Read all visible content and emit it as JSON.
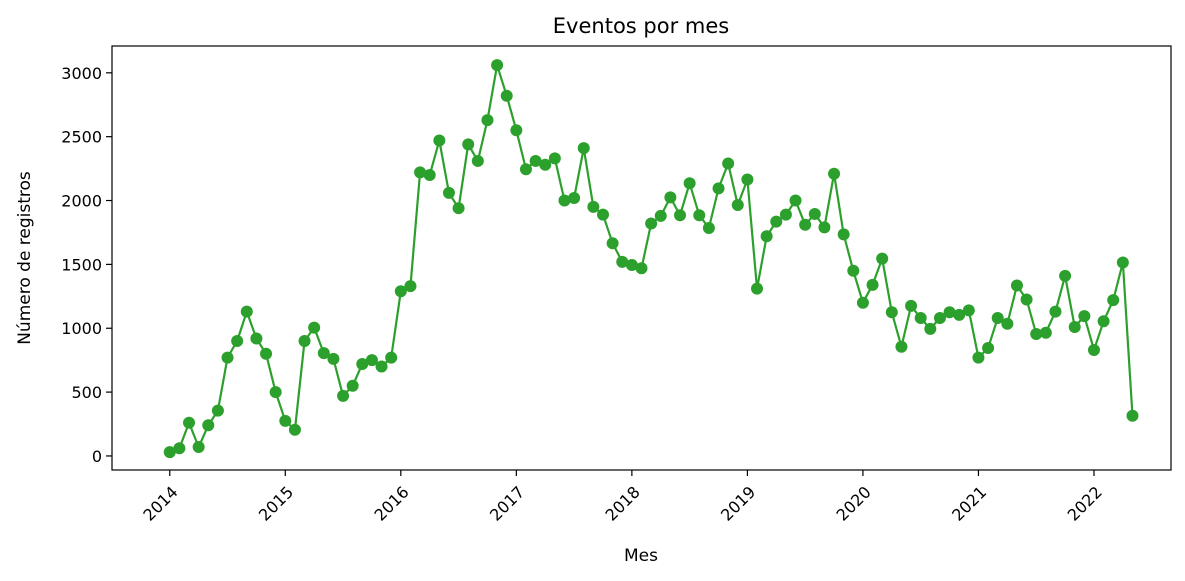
{
  "chart_data": {
    "type": "line",
    "title": "Eventos por mes",
    "xlabel": "Mes",
    "ylabel": "Número de registros",
    "x_tick_labels": [
      "2014",
      "2015",
      "2016",
      "2017",
      "2018",
      "2019",
      "2020",
      "2021",
      "2022"
    ],
    "y_ticks": [
      0,
      500,
      1000,
      1500,
      2000,
      2500,
      3000
    ],
    "y_tick_labels": [
      "0",
      "500",
      "1000",
      "1500",
      "2000",
      "2500",
      "3000"
    ],
    "xlim": [
      "2013-07",
      "2022-09"
    ],
    "ylim": [
      -110,
      3210
    ],
    "grid": false,
    "legend": "none",
    "color": "#2ca02c",
    "series": [
      {
        "x": [
          "2014-01",
          "2014-02",
          "2014-03",
          "2014-04",
          "2014-05",
          "2014-06",
          "2014-07",
          "2014-08",
          "2014-09",
          "2014-10",
          "2014-11",
          "2014-12",
          "2015-01",
          "2015-02",
          "2015-03",
          "2015-04",
          "2015-05",
          "2015-06",
          "2015-07",
          "2015-08",
          "2015-09",
          "2015-10",
          "2015-11",
          "2015-12",
          "2016-01",
          "2016-02",
          "2016-03",
          "2016-04",
          "2016-05",
          "2016-06",
          "2016-07",
          "2016-08",
          "2016-09",
          "2016-10",
          "2016-11",
          "2016-12",
          "2017-01",
          "2017-02",
          "2017-03",
          "2017-04",
          "2017-05",
          "2017-06",
          "2017-07",
          "2017-08",
          "2017-09",
          "2017-10",
          "2017-11",
          "2017-12",
          "2018-01",
          "2018-02",
          "2018-03",
          "2018-04",
          "2018-05",
          "2018-06",
          "2018-07",
          "2018-08",
          "2018-09",
          "2018-10",
          "2018-11",
          "2018-12",
          "2019-01",
          "2019-02",
          "2019-03",
          "2019-04",
          "2019-05",
          "2019-06",
          "2019-07",
          "2019-08",
          "2019-09",
          "2019-10",
          "2019-11",
          "2019-12",
          "2020-01",
          "2020-02",
          "2020-03",
          "2020-04",
          "2020-05",
          "2020-06",
          "2020-07",
          "2020-08",
          "2020-09",
          "2020-10",
          "2020-11",
          "2020-12",
          "2021-01",
          "2021-02",
          "2021-03",
          "2021-04",
          "2021-05",
          "2021-06",
          "2021-07",
          "2021-08",
          "2021-09",
          "2021-10",
          "2021-11",
          "2021-12",
          "2022-01",
          "2022-02",
          "2022-03",
          "2022-04",
          "2022-05"
        ],
        "y": [
          30,
          60,
          260,
          70,
          240,
          355,
          770,
          900,
          1130,
          920,
          800,
          500,
          275,
          205,
          900,
          1005,
          805,
          760,
          470,
          550,
          720,
          750,
          700,
          770,
          1290,
          1330,
          2220,
          2200,
          2470,
          2060,
          1940,
          2440,
          2310,
          2630,
          3060,
          2820,
          2550,
          2245,
          2310,
          2280,
          2330,
          2000,
          2020,
          2410,
          1950,
          1890,
          1665,
          1520,
          1495,
          1470,
          1820,
          1880,
          2025,
          1885,
          2135,
          1885,
          1785,
          2095,
          2290,
          1965,
          2165,
          1310,
          1720,
          1835,
          1890,
          2000,
          1810,
          1895,
          1790,
          2210,
          1735,
          1450,
          1200,
          1340,
          1545,
          1125,
          855,
          1175,
          1080,
          995,
          1080,
          1125,
          1105,
          1140,
          770,
          845,
          1080,
          1035,
          1335,
          1225,
          955,
          965,
          1130,
          1410,
          1010,
          1095,
          830,
          1055,
          1220,
          1515,
          315
        ]
      }
    ]
  }
}
